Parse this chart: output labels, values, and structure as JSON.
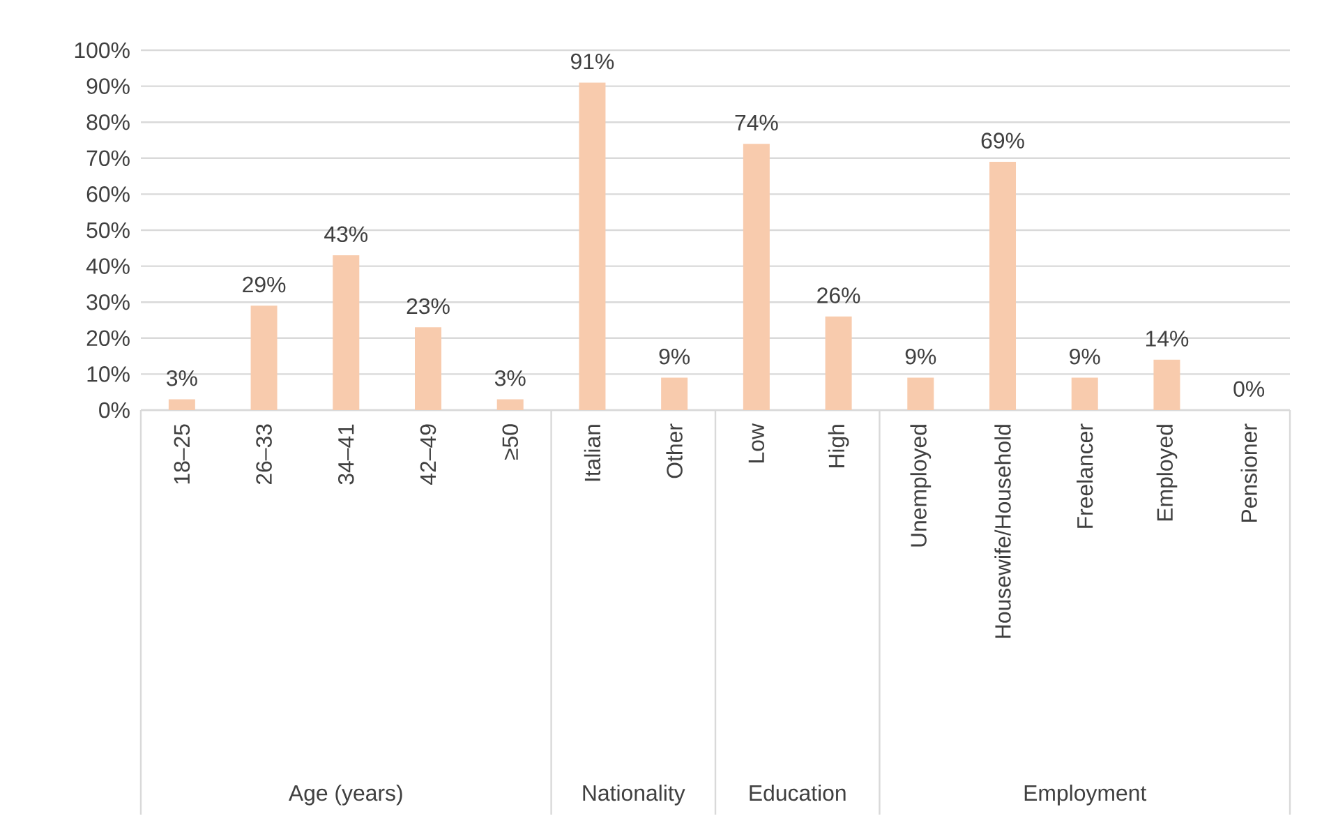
{
  "chart_data": {
    "type": "bar",
    "categories": [
      "18–25",
      "26–33",
      "34–41",
      "42–49",
      "≥50",
      "Italian",
      "Other",
      "Low",
      "High",
      "Unemployed",
      "Housewife/Household",
      "Freelancer",
      "Employed",
      "Pensioner"
    ],
    "values": [
      3,
      29,
      43,
      23,
      3,
      91,
      9,
      74,
      26,
      9,
      69,
      9,
      14,
      0
    ],
    "value_labels": [
      "3%",
      "29%",
      "43%",
      "23%",
      "3%",
      "91%",
      "9%",
      "74%",
      "26%",
      "9%",
      "69%",
      "9%",
      "14%",
      "0%"
    ],
    "color": "#f8cbad",
    "ylim": [
      0,
      100
    ],
    "yticks": [
      {
        "value": 0,
        "label": "0%"
      },
      {
        "value": 10,
        "label": "10%"
      },
      {
        "value": 20,
        "label": "20%"
      },
      {
        "value": 30,
        "label": "30%"
      },
      {
        "value": 40,
        "label": "40%"
      },
      {
        "value": 50,
        "label": "50%"
      },
      {
        "value": 60,
        "label": "60%"
      },
      {
        "value": 70,
        "label": "70%"
      },
      {
        "value": 80,
        "label": "80%"
      },
      {
        "value": 90,
        "label": "90%"
      },
      {
        "value": 100,
        "label": "100%"
      }
    ],
    "grid": "y",
    "annotations": [
      "Age (years)",
      "Nationality",
      "Education",
      "Employment"
    ]
  }
}
